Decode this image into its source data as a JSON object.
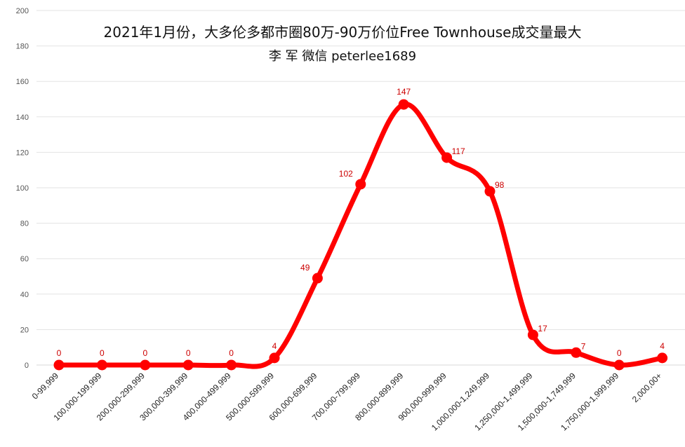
{
  "chart_data": {
    "type": "line",
    "title": "2021年1月份，大多伦多都市圈80万-90万价位Free Townhouse成交量最大",
    "subtitle": "李 军  微信  peterlee1689",
    "xlabel": "",
    "ylabel": "",
    "categories": [
      "0-99,999",
      "100,000-199,999",
      "200,000-299,999",
      "300,000-399,999",
      "400,000-499,999",
      "500,000-599,999",
      "600,000-699,999",
      "700,000-799,999",
      "800,000-899,999",
      "900,000-999,999",
      "1,000,000-1,249,999",
      "1,250,000-1,499,999",
      "1,500,000-1,749,999",
      "1,750,000-1,999,999",
      "2,000,00+"
    ],
    "series": [
      {
        "values": [
          0,
          0,
          0,
          0,
          0,
          4,
          49,
          102,
          147,
          117,
          98,
          17,
          7,
          0,
          4
        ]
      }
    ],
    "ylim": [
      0,
      200
    ],
    "yticks": [
      0,
      20,
      40,
      60,
      80,
      100,
      120,
      140,
      160,
      180,
      200
    ],
    "grid": true,
    "legend": "none",
    "smooth": true,
    "colors": {
      "line": "#ff0000",
      "label": "#cc0000",
      "grid": "#e3e3e3",
      "axis": "#d9d9d9",
      "tick_text": "#555555",
      "category_text": "#222222"
    }
  }
}
